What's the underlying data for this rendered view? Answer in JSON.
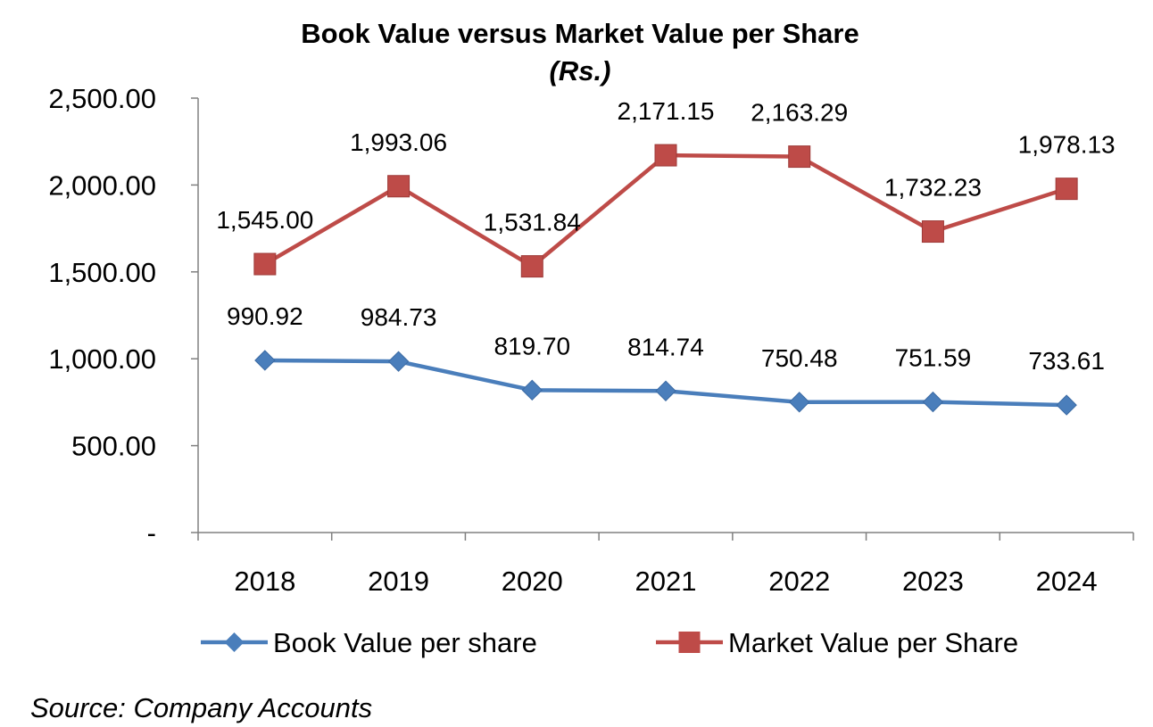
{
  "chart_data": {
    "type": "line",
    "title": "Book Value versus Market Value per Share",
    "subtitle": "(Rs.)",
    "categories": [
      "2018",
      "2019",
      "2020",
      "2021",
      "2022",
      "2023",
      "2024"
    ],
    "series": [
      {
        "name": "Book Value per share",
        "values": [
          990.92,
          984.73,
          819.7,
          814.74,
          750.48,
          751.59,
          733.61
        ],
        "labels": [
          "990.92",
          "984.73",
          "819.70",
          "814.74",
          "750.48",
          "751.59",
          "733.61"
        ],
        "color": "#4a7ebb",
        "marker": "diamond"
      },
      {
        "name": "Market Value per Share",
        "values": [
          1545.0,
          1993.06,
          1531.84,
          2171.15,
          2163.29,
          1732.23,
          1978.13
        ],
        "labels": [
          "1,545.00",
          "1,993.06",
          "1,531.84",
          "2,171.15",
          "2,163.29",
          "1,732.23",
          "1,978.13"
        ],
        "color": "#be4b48",
        "marker": "square"
      }
    ],
    "ylim": [
      0,
      2500
    ],
    "yticks": [
      0,
      500,
      1000,
      1500,
      2000,
      2500
    ],
    "ytick_labels": [
      "-",
      "500.00",
      "1,000.00",
      "1,500.00",
      "2,000.00",
      "2,500.00"
    ],
    "grid": false,
    "legend_position": "bottom",
    "source": "Source: Company Accounts"
  }
}
